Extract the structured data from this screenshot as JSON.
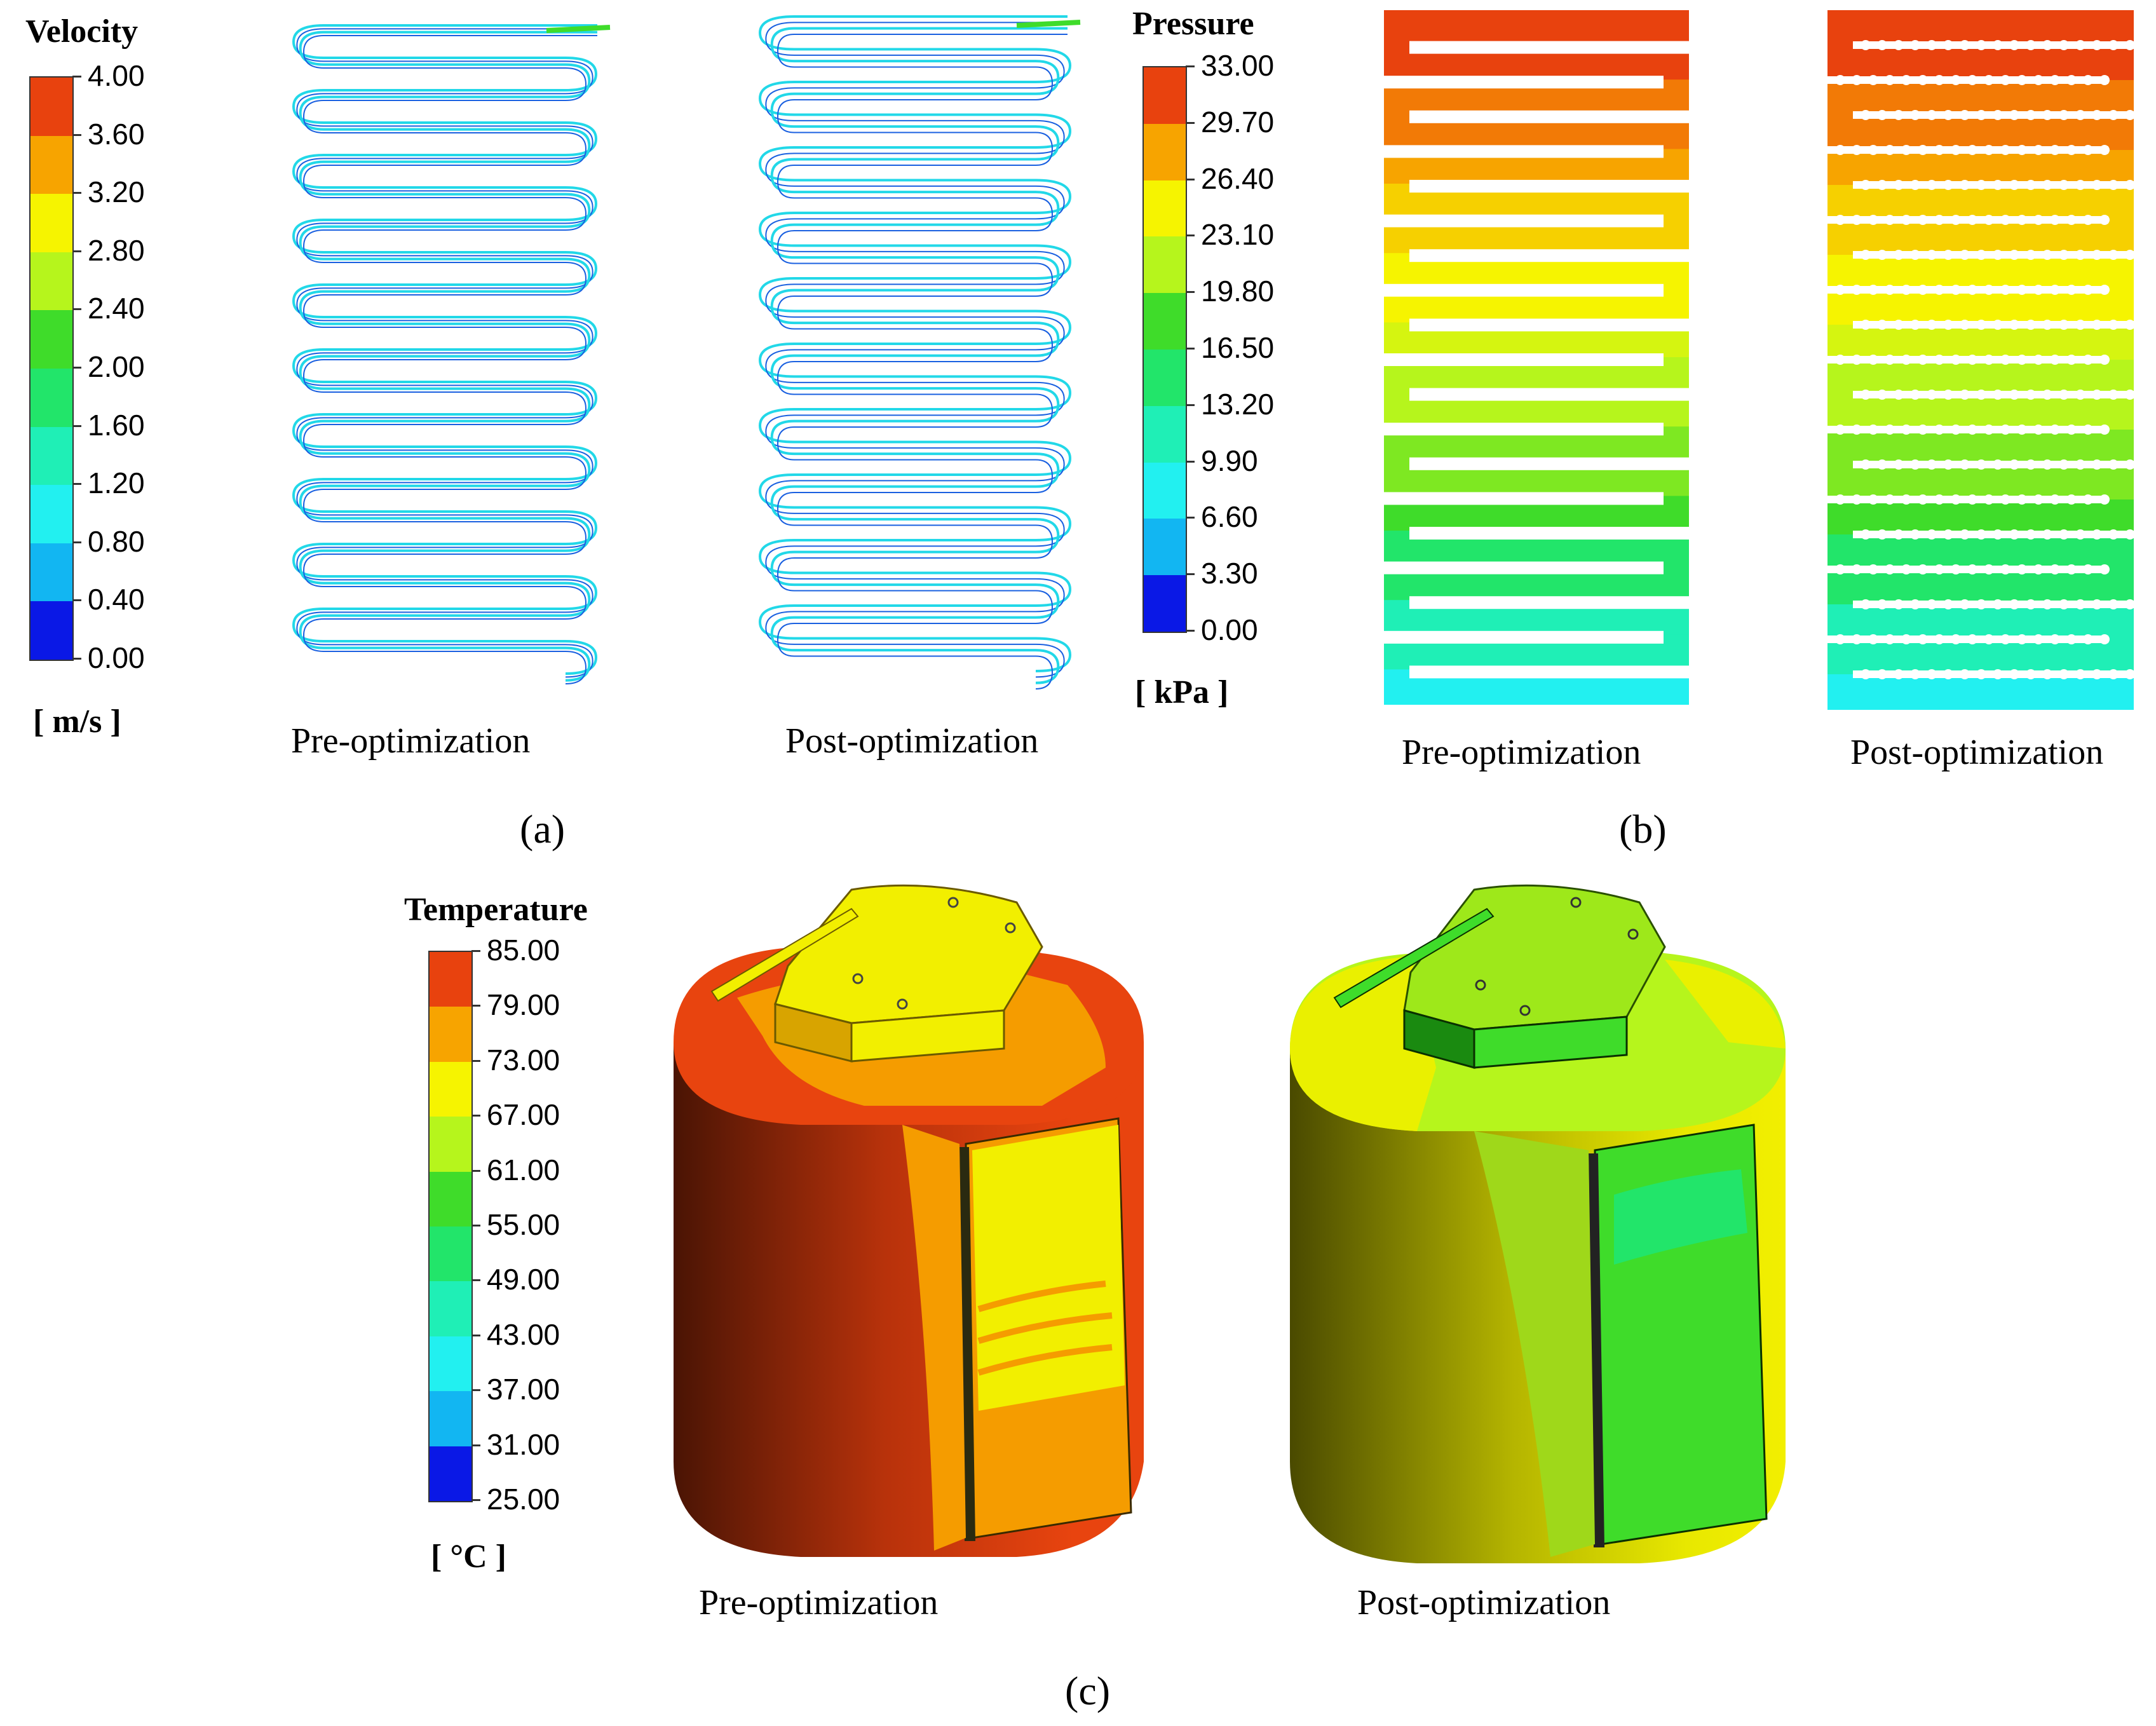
{
  "velocity_legend": {
    "title": "Velocity",
    "unit": "[ m/s ]",
    "ticks": [
      "4.00",
      "3.60",
      "3.20",
      "2.80",
      "2.40",
      "2.00",
      "1.60",
      "1.20",
      "0.80",
      "0.40",
      "0.00"
    ]
  },
  "pressure_legend": {
    "title": "Pressure",
    "unit": "[ kPa ]",
    "ticks": [
      "33.00",
      "29.70",
      "26.40",
      "23.10",
      "19.80",
      "16.50",
      "13.20",
      "9.90",
      "6.60",
      "3.30",
      "0.00"
    ]
  },
  "temperature_legend": {
    "title": "Temperature",
    "unit": "[ °C ]",
    "ticks": [
      "85.00",
      "79.00",
      "73.00",
      "67.00",
      "61.00",
      "55.00",
      "49.00",
      "43.00",
      "37.00",
      "31.00",
      "25.00"
    ]
  },
  "colormap": [
    "#e8420e",
    "#f7a400",
    "#f6f400",
    "#b6f51c",
    "#3fdc2a",
    "#22e56a",
    "#1fefb6",
    "#22f0f0",
    "#12b6f2",
    "#0a5af0",
    "#0a18e6"
  ],
  "panels": {
    "a": {
      "label": "(a)",
      "captions": {
        "pre": "Pre-optimization",
        "post": "Post-optimization"
      }
    },
    "b": {
      "label": "(b)",
      "captions": {
        "pre": "Pre-optimization",
        "post": "Post-optimization"
      }
    },
    "c": {
      "label": "(c)",
      "captions": {
        "pre": "Pre-optimization",
        "post": "Post-optimization"
      }
    }
  }
}
